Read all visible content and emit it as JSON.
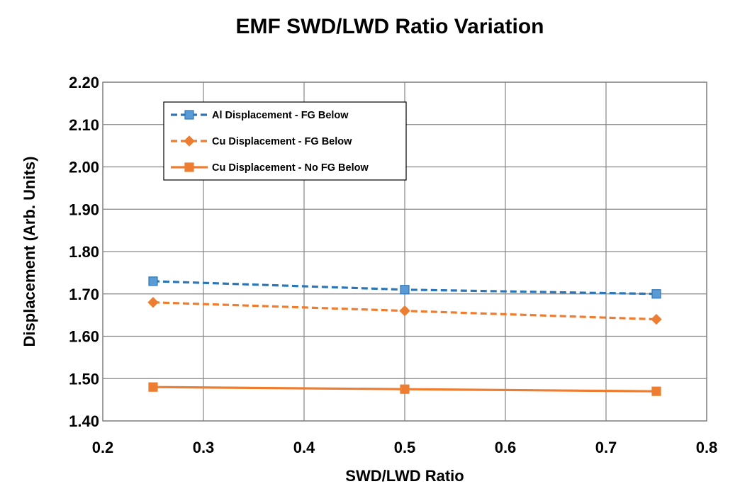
{
  "chart_data": {
    "type": "line",
    "title": "EMF SWD/LWD Ratio Variation",
    "xlabel": "SWD/LWD Ratio",
    "ylabel": "Displacement (Arb. Units)",
    "xlim": [
      0.2,
      0.8
    ],
    "ylim": [
      1.4,
      2.2
    ],
    "x_ticks": [
      "0.2",
      "0.3",
      "0.4",
      "0.5",
      "0.6",
      "0.7",
      "0.8"
    ],
    "y_ticks": [
      "1.40",
      "1.50",
      "1.60",
      "1.70",
      "1.80",
      "1.90",
      "2.00",
      "2.10",
      "2.20"
    ],
    "grid": true,
    "legend_position": "top-left",
    "series": [
      {
        "name": "Al Displacement  - FG Below",
        "color": "#2E75B6",
        "marker_color": "#5B9BD5",
        "line_style": "dashed",
        "marker": "square",
        "x": [
          0.25,
          0.5,
          0.75
        ],
        "values": [
          1.73,
          1.71,
          1.7
        ]
      },
      {
        "name": "Cu Displacement  - FG Below",
        "color": "#ED7D31",
        "marker_color": "#ED7D31",
        "line_style": "dashed",
        "marker": "diamond",
        "x": [
          0.25,
          0.5,
          0.75
        ],
        "values": [
          1.68,
          1.66,
          1.64
        ]
      },
      {
        "name": "Cu Displacement  - No FG Below",
        "color": "#ED7D31",
        "marker_color": "#ED7D31",
        "line_style": "solid",
        "marker": "square",
        "x": [
          0.25,
          0.5,
          0.75
        ],
        "values": [
          1.48,
          1.475,
          1.47
        ]
      }
    ]
  }
}
